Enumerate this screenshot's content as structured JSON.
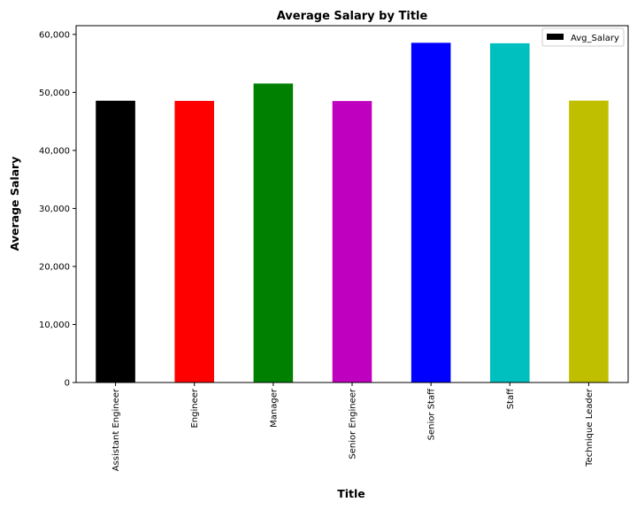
{
  "chart_data": {
    "type": "bar",
    "title": "Average Salary by Title",
    "xlabel": "Title",
    "ylabel": "Average Salary",
    "categories": [
      "Assistant Engineer",
      "Engineer",
      "Manager",
      "Senior Engineer",
      "Senior Staff",
      "Staff",
      "Technique Leader"
    ],
    "series": [
      {
        "name": "Avg_Salary",
        "values": [
          48564,
          48535,
          51531,
          48507,
          58550,
          58465,
          48583
        ],
        "colors": [
          "#000000",
          "#ff0000",
          "#008000",
          "#bf00bf",
          "#0000ff",
          "#00bfbf",
          "#bfbf00"
        ]
      }
    ],
    "ylim": [
      0,
      61500
    ],
    "yticks": [
      0,
      10000,
      20000,
      30000,
      40000,
      50000,
      60000
    ],
    "ytick_labels": [
      "0",
      "10,000",
      "20,000",
      "30,000",
      "40,000",
      "50,000",
      "60,000"
    ],
    "legend": {
      "placement": "top-right",
      "entries": [
        "Avg_Salary"
      ],
      "swatch_color": "#000000"
    },
    "grid": false
  }
}
